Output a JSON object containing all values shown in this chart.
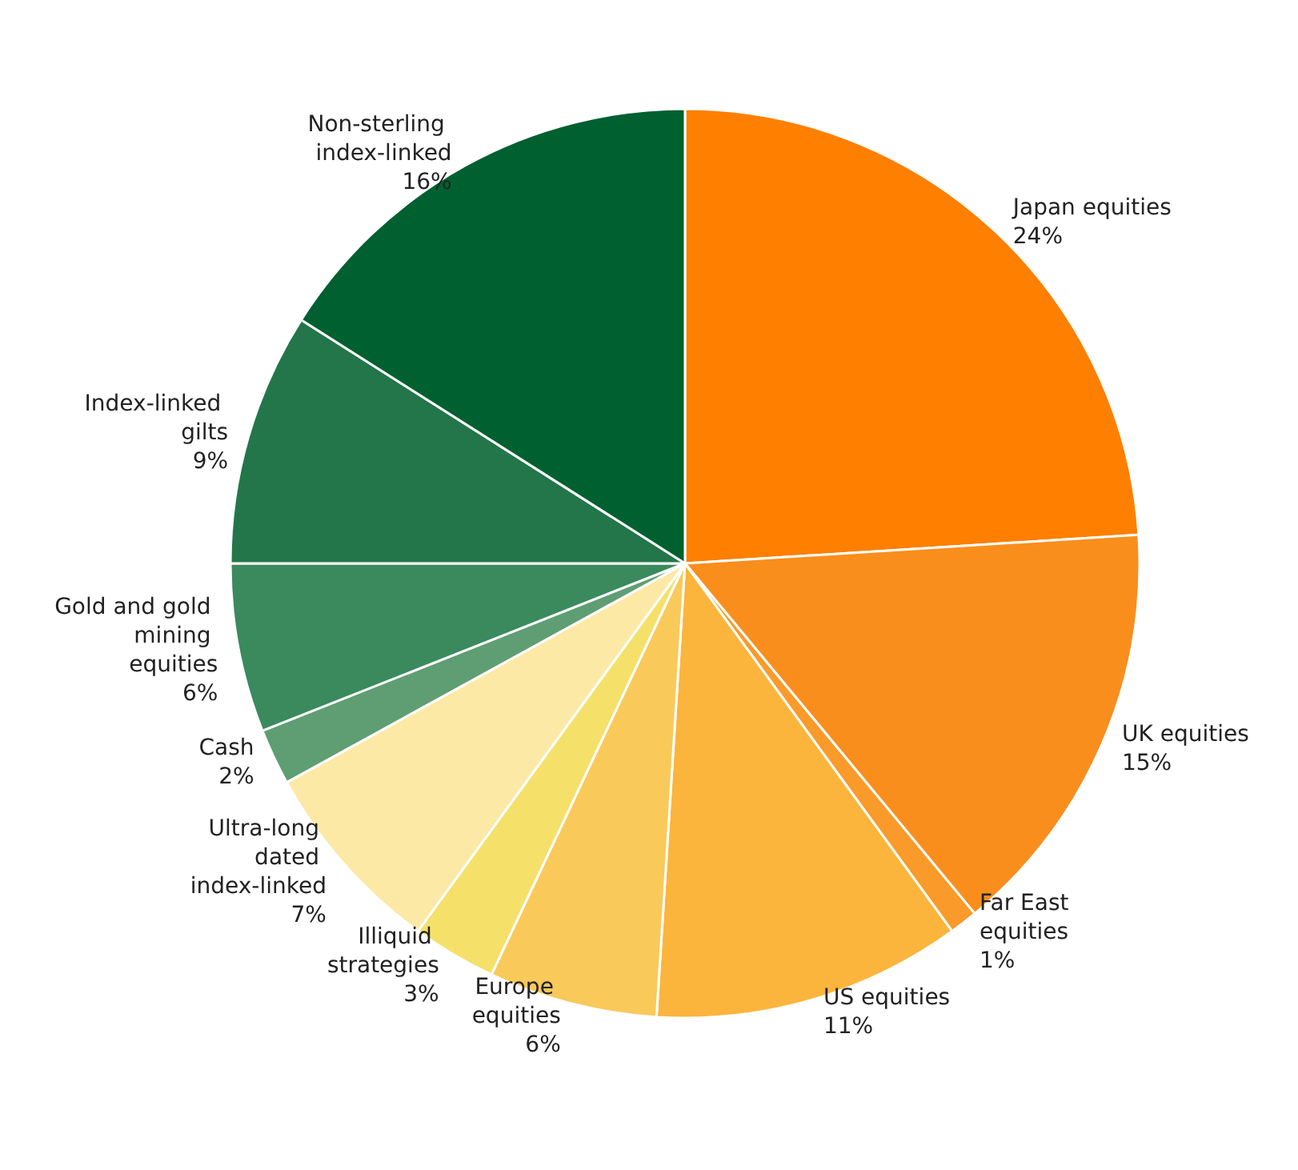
{
  "chart_data": {
    "type": "pie",
    "categories": [
      "Japan equities",
      "UK equities",
      "Far East equities",
      "US equities",
      "Europe equities",
      "Illiquid strategies",
      "Ultra-long dated index-linked",
      "Cash",
      "Gold and gold mining equities",
      "Index-linked gilts",
      "Non-sterling index-linked"
    ],
    "values": [
      24,
      15,
      1,
      11,
      6,
      3,
      7,
      2,
      6,
      9,
      16
    ],
    "colors": [
      "#ff7f00",
      "#f98e1d",
      "#f99a2a",
      "#fbb53c",
      "#f9c95a",
      "#f5e06a",
      "#fde9a6",
      "#5f9e72",
      "#3a8a5e",
      "#23764a",
      "#006030"
    ],
    "value_labels": [
      "24%",
      "15%",
      "1%",
      "11%",
      "6%",
      "3%",
      "7%",
      "2%",
      "6%",
      "9%",
      "16%"
    ]
  }
}
